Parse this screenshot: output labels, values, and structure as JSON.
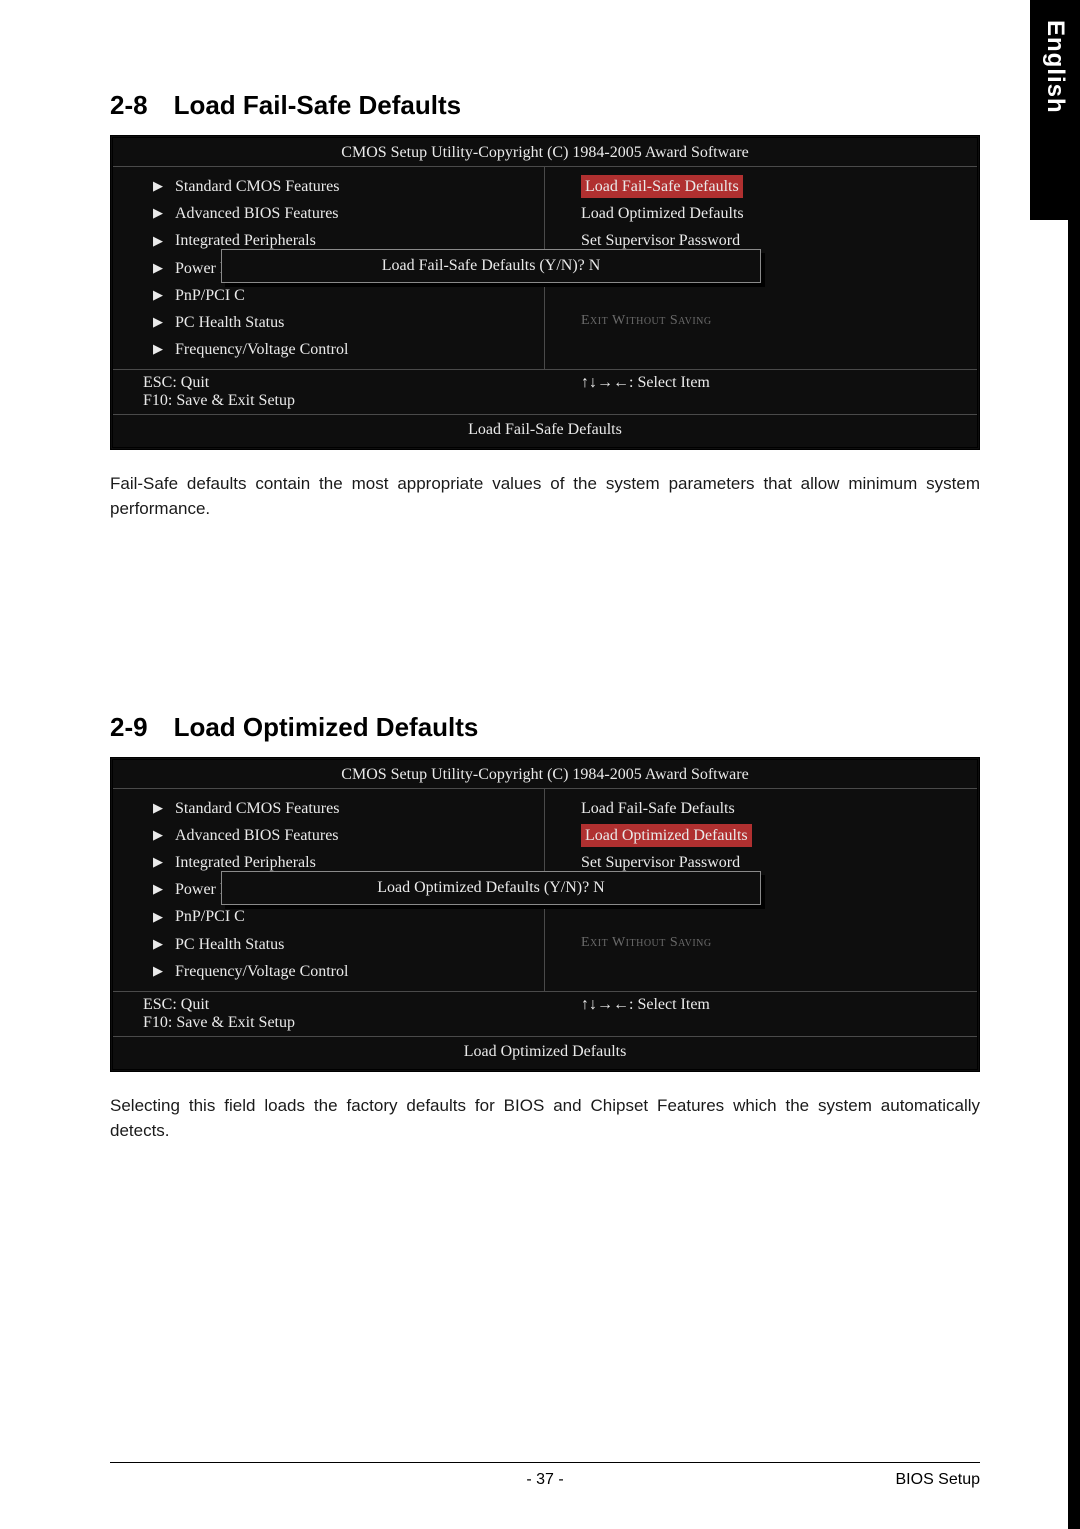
{
  "side_tab": "English",
  "sections": {
    "s1": {
      "number": "2-8",
      "title": "Load Fail-Safe Defaults",
      "bios_title": "CMOS Setup Utility-Copyright (C) 1984-2005 Award Software",
      "left_menu": [
        "Standard CMOS Features",
        "Advanced BIOS Features",
        "Integrated Peripherals",
        "Power Man",
        "PnP/PCI C",
        "PC Health Status",
        "Frequency/Voltage Control"
      ],
      "right_menu": {
        "r0": "Load Fail-Safe Defaults",
        "r1": "Load Optimized Defaults",
        "r2": "Set Supervisor Password",
        "exit": "Exit Without Saving"
      },
      "dialog": "Load Fail-Safe Defaults (Y/N)? N",
      "footer_left": [
        "ESC: Quit",
        "F10: Save & Exit Setup"
      ],
      "footer_right": "↑↓→←: Select Item",
      "help": "Load Fail-Safe Defaults",
      "description": "Fail-Safe defaults contain the most appropriate values of the system parameters that allow minimum system performance."
    },
    "s2": {
      "number": "2-9",
      "title": "Load Optimized Defaults",
      "bios_title": "CMOS Setup Utility-Copyright (C) 1984-2005 Award Software",
      "left_menu": [
        "Standard CMOS Features",
        "Advanced BIOS Features",
        "Integrated Peripherals",
        "Power Man",
        "PnP/PCI C",
        "PC Health Status",
        "Frequency/Voltage Control"
      ],
      "right_menu": {
        "r0": "Load Fail-Safe Defaults",
        "r1": "Load Optimized Defaults",
        "r2": "Set Supervisor Password",
        "exit": "Exit Without Saving"
      },
      "dialog": "Load Optimized Defaults (Y/N)? N",
      "footer_left": [
        "ESC: Quit",
        "F10: Save & Exit Setup"
      ],
      "footer_right": "↑↓→←: Select Item",
      "help": "Load Optimized Defaults",
      "description": "Selecting this field loads the factory defaults for BIOS and Chipset Features which the system automatically detects."
    }
  },
  "footer": {
    "page": "- 37 -",
    "label": "BIOS Setup"
  },
  "colors": {
    "bios_bg": "#0e0e0e",
    "bios_text": "#eaeaea",
    "highlight": "#b03030",
    "border": "#4a4a4a"
  }
}
